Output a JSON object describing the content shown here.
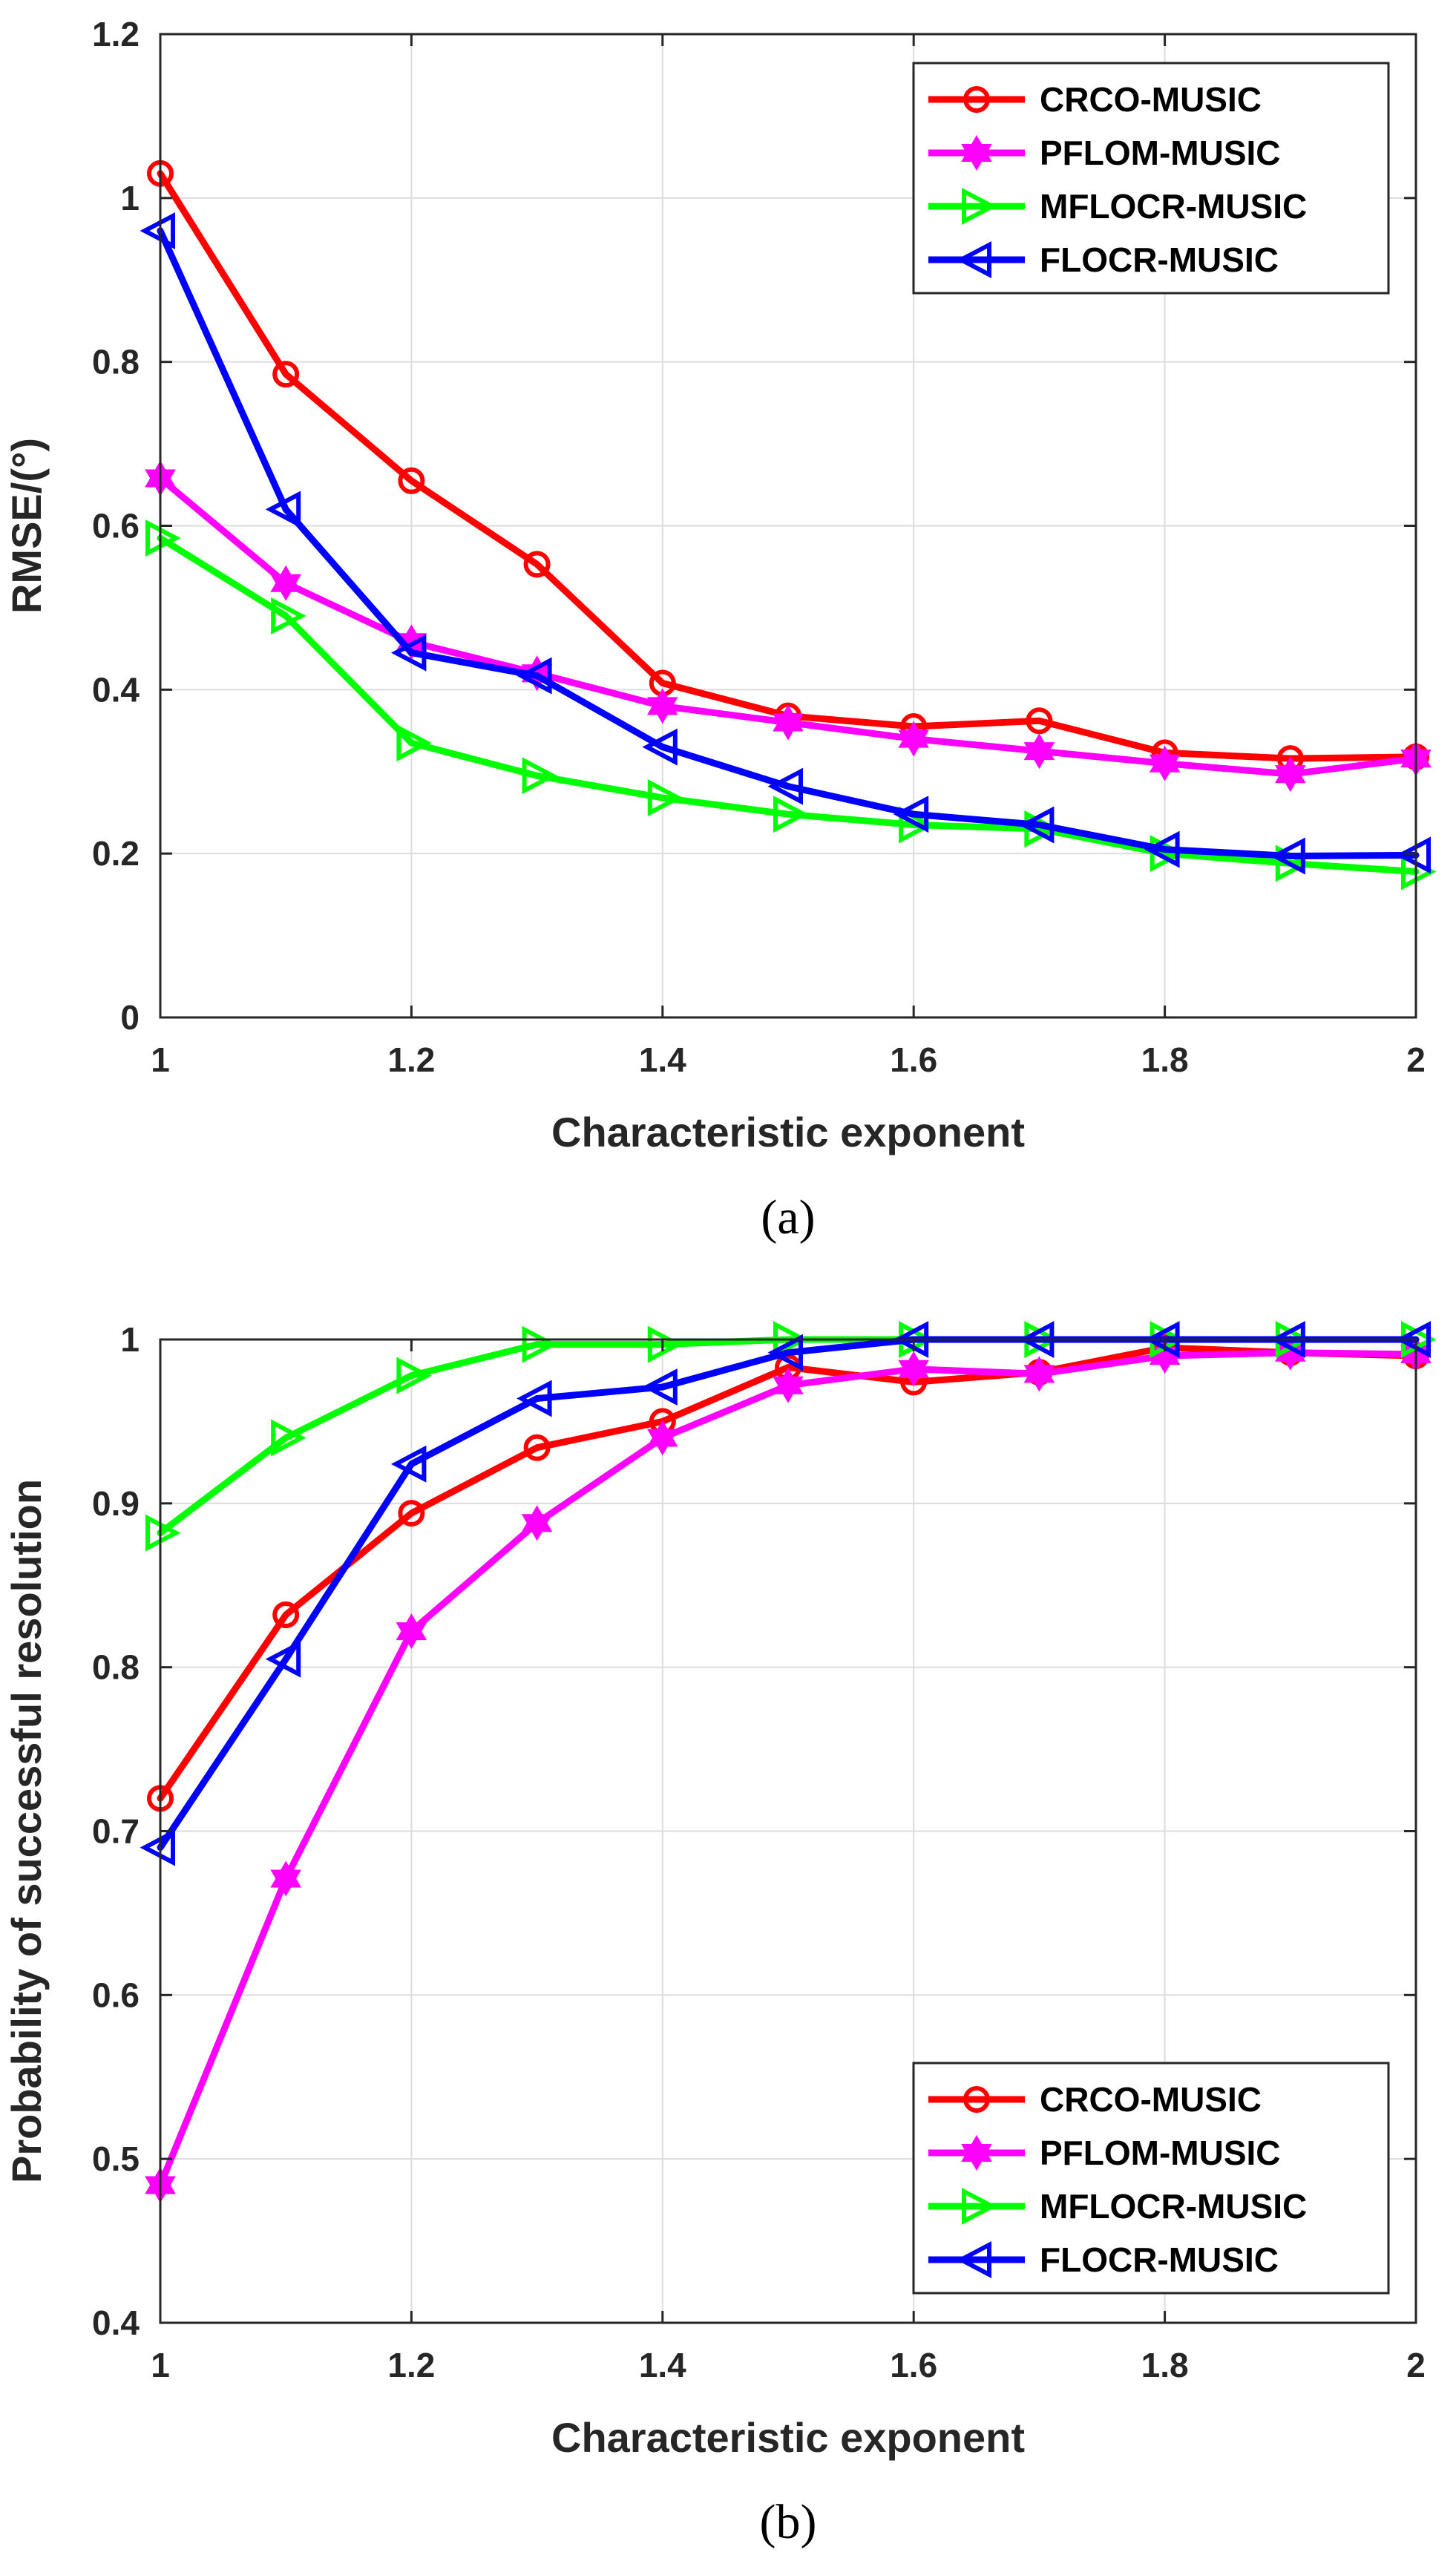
{
  "colors": {
    "CRCO-MUSIC": "#ff0000",
    "PFLOM-MUSIC": "#ff00ff",
    "MFLOCR-MUSIC": "#00ff00",
    "FLOCR-MUSIC": "#0000ff"
  },
  "markers": {
    "CRCO-MUSIC": "circle",
    "PFLOM-MUSIC": "hexagram",
    "MFLOCR-MUSIC": "triangle-right",
    "FLOCR-MUSIC": "triangle-left"
  },
  "chart_data": [
    {
      "type": "line",
      "caption": "(a)",
      "caption_letter": "a",
      "xlabel": "Characteristic exponent",
      "ylabel": "RMSE/(°)",
      "xlim": [
        1,
        2
      ],
      "ylim": [
        0,
        1.2
      ],
      "xticks": [
        "1",
        "1.2",
        "1.4",
        "1.6",
        "1.8",
        "2"
      ],
      "yticks": [
        "0",
        "0.2",
        "0.4",
        "0.6",
        "0.8",
        "1",
        "1.2"
      ],
      "grid": true,
      "legend_position": "top-right",
      "x": [
        1,
        1.1,
        1.2,
        1.3,
        1.4,
        1.5,
        1.6,
        1.7,
        1.8,
        1.9,
        2
      ],
      "series": [
        {
          "name": "CRCO-MUSIC",
          "values": [
            1.03,
            0.785,
            0.655,
            0.553,
            0.408,
            0.368,
            0.355,
            0.362,
            0.323,
            0.316,
            0.318
          ]
        },
        {
          "name": "PFLOM-MUSIC",
          "values": [
            0.658,
            0.53,
            0.458,
            0.42,
            0.38,
            0.36,
            0.34,
            0.325,
            0.31,
            0.297,
            0.316
          ]
        },
        {
          "name": "MFLOCR-MUSIC",
          "values": [
            0.585,
            0.49,
            0.335,
            0.295,
            0.268,
            0.248,
            0.235,
            0.23,
            0.2,
            0.188,
            0.178
          ]
        },
        {
          "name": "FLOCR-MUSIC",
          "values": [
            0.96,
            0.62,
            0.445,
            0.417,
            0.33,
            0.282,
            0.248,
            0.235,
            0.205,
            0.197,
            0.198
          ]
        }
      ]
    },
    {
      "type": "line",
      "caption": "(b)",
      "caption_letter": "b",
      "xlabel": "Characteristic exponent",
      "ylabel": "Probability of successful resolution",
      "xlim": [
        1,
        2
      ],
      "ylim": [
        0.4,
        1
      ],
      "xticks": [
        "1",
        "1.2",
        "1.4",
        "1.6",
        "1.8",
        "2"
      ],
      "yticks": [
        "0.4",
        "0.5",
        "0.6",
        "0.7",
        "0.8",
        "0.9",
        "1"
      ],
      "grid": true,
      "legend_position": "bottom-right",
      "x": [
        1,
        1.1,
        1.2,
        1.3,
        1.4,
        1.5,
        1.6,
        1.7,
        1.8,
        1.9,
        2
      ],
      "series": [
        {
          "name": "CRCO-MUSIC",
          "values": [
            0.72,
            0.832,
            0.894,
            0.934,
            0.95,
            0.983,
            0.974,
            0.98,
            0.995,
            0.992,
            0.99
          ]
        },
        {
          "name": "PFLOM-MUSIC",
          "values": [
            0.484,
            0.671,
            0.822,
            0.888,
            0.94,
            0.972,
            0.982,
            0.979,
            0.99,
            0.992,
            0.991
          ]
        },
        {
          "name": "MFLOCR-MUSIC",
          "values": [
            0.882,
            0.94,
            0.978,
            0.997,
            0.997,
            1.0,
            1.0,
            1.0,
            1.0,
            1.0,
            1.0
          ]
        },
        {
          "name": "FLOCR-MUSIC",
          "values": [
            0.69,
            0.805,
            0.924,
            0.964,
            0.971,
            0.992,
            1.0,
            1.0,
            1.0,
            1.0,
            1.0
          ]
        }
      ]
    }
  ]
}
